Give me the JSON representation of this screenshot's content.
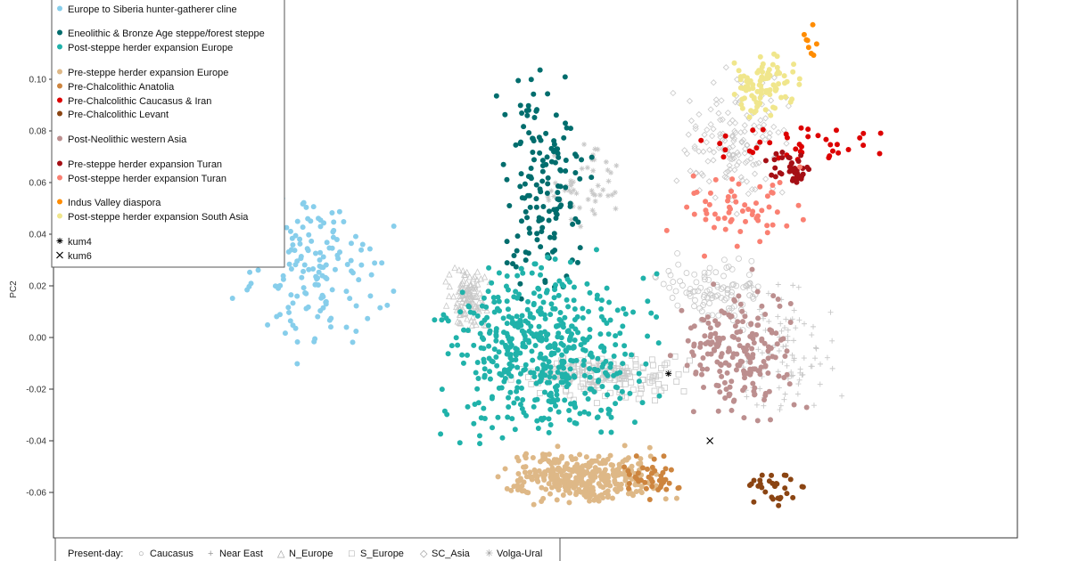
{
  "chart_data": {
    "type": "scatter",
    "title": "",
    "xlabel": "",
    "ylabel": "PC2",
    "ylim": [
      -0.072,
      0.128
    ],
    "yticks": [
      0.1,
      0.08,
      0.06,
      0.04,
      0.02,
      0.0,
      -0.02,
      -0.04,
      -0.06
    ],
    "ytick_labels": [
      "0.10",
      "0.08",
      "0.06",
      "0.04",
      "0.02",
      "0.00",
      "-0.02",
      "-0.04",
      "-0.06"
    ],
    "xlim": [
      0,
      100
    ],
    "grid": false,
    "legend_placement": "top-left",
    "legend": [
      {
        "label": "Europe to Siberia hunter-gatherer cline",
        "color": "#87ceeb",
        "marker": "dot"
      },
      {
        "label": "Eneolithic & Bronze Age steppe/forest steppe",
        "color": "#006d6d",
        "marker": "dot"
      },
      {
        "label": "Post-steppe herder expansion Europe",
        "color": "#20b2aa",
        "marker": "dot"
      },
      {
        "label": "Pre-steppe herder expansion Europe",
        "color": "#deb887",
        "marker": "dot"
      },
      {
        "label": "Pre-Chalcolithic Anatolia",
        "color": "#cd853f",
        "marker": "dot"
      },
      {
        "label": "Pre-Chalcolithic Caucasus & Iran",
        "color": "#dd0000",
        "marker": "dot"
      },
      {
        "label": "Pre-Chalcolithic Levant",
        "color": "#8b4513",
        "marker": "dot"
      },
      {
        "label": "Post-Neolithic western Asia",
        "color": "#bc8f8f",
        "marker": "dot"
      },
      {
        "label": "Pre-steppe herder expansion Turan",
        "color": "#a50f15",
        "marker": "dot"
      },
      {
        "label": "Post-steppe herder expansion Turan",
        "color": "#fa8072",
        "marker": "dot"
      },
      {
        "label": "Indus Valley diaspora",
        "color": "#ff8c00",
        "marker": "dot"
      },
      {
        "label": "Post-steppe herder expansion South Asia",
        "color": "#f0e68c",
        "marker": "dot"
      },
      {
        "label": "kum4",
        "color": "#000000",
        "marker": "asterisk"
      },
      {
        "label": "kum6",
        "color": "#000000",
        "marker": "cross"
      }
    ],
    "present_day_legend": {
      "title": "Present-day:",
      "items": [
        {
          "label": "Caucasus",
          "symbol": "○"
        },
        {
          "label": "Near East",
          "symbol": "+"
        },
        {
          "label": "N_Europe",
          "symbol": "△"
        },
        {
          "label": "S_Europe",
          "symbol": "□"
        },
        {
          "label": "SC_Asia",
          "symbol": "◇"
        },
        {
          "label": "Volga-Ural",
          "symbol": "✳"
        }
      ]
    },
    "clusters": [
      {
        "series": "Present-day N_Europe",
        "marker": "triangle",
        "color": "#c8c8c8",
        "n": 120,
        "x": [
          40,
          46
        ],
        "y": [
          0.0,
          0.03
        ]
      },
      {
        "series": "Present-day S_Europe",
        "marker": "square",
        "color": "#c8c8c8",
        "n": 180,
        "x": [
          46,
          68
        ],
        "y": [
          -0.026,
          -0.003
        ]
      },
      {
        "series": "Present-day Caucasus",
        "marker": "circle",
        "color": "#c8c8c8",
        "n": 100,
        "x": [
          61,
          76
        ],
        "y": [
          0.0,
          0.035
        ]
      },
      {
        "series": "Present-day Near East",
        "marker": "plus",
        "color": "#c8c8c8",
        "n": 90,
        "x": [
          68,
          83
        ],
        "y": [
          -0.045,
          0.03
        ]
      },
      {
        "series": "Present-day SC_Asia",
        "marker": "diamond",
        "color": "#c8c8c8",
        "n": 150,
        "x": [
          63,
          79
        ],
        "y": [
          0.04,
          0.11
        ]
      },
      {
        "series": "Present-day Volga-Ural",
        "marker": "asterisk",
        "color": "#c8c8c8",
        "n": 50,
        "x": [
          50,
          60
        ],
        "y": [
          0.04,
          0.08
        ]
      },
      {
        "series": "Europe to Siberia hunter-gatherer cline",
        "color": "#87ceeb",
        "n": 150,
        "x": [
          17,
          37
        ],
        "y": [
          -0.017,
          0.07
        ]
      },
      {
        "series": "Eneolithic & Bronze Age steppe/forest steppe",
        "color": "#006d6d",
        "n": 150,
        "x": [
          45,
          57
        ],
        "y": [
          0.0,
          0.115
        ]
      },
      {
        "series": "Post-steppe herder expansion Europe",
        "color": "#20b2aa",
        "n": 500,
        "x": [
          37,
          65
        ],
        "y": [
          -0.05,
          0.04
        ]
      },
      {
        "series": "Pre-steppe herder expansion Europe",
        "color": "#deb887",
        "n": 350,
        "x": [
          44,
          66
        ],
        "y": [
          -0.068,
          -0.04
        ]
      },
      {
        "series": "Pre-Chalcolithic Anatolia",
        "color": "#cd853f",
        "n": 40,
        "x": [
          58,
          66
        ],
        "y": [
          -0.066,
          -0.04
        ]
      },
      {
        "series": "Post-Neolithic western Asia",
        "color": "#bc8f8f",
        "n": 200,
        "x": [
          63,
          79
        ],
        "y": [
          -0.04,
          0.03
        ]
      },
      {
        "series": "Pre-Chalcolithic Caucasus & Iran",
        "color": "#dd0000",
        "n": 40,
        "x": [
          63,
          89
        ],
        "y": [
          0.065,
          0.085
        ]
      },
      {
        "series": "Pre-steppe herder expansion Turan",
        "color": "#a50f15",
        "n": 40,
        "x": [
          73,
          80
        ],
        "y": [
          0.055,
          0.075
        ]
      },
      {
        "series": "Post-steppe herder expansion Turan",
        "color": "#fa8072",
        "n": 60,
        "x": [
          62,
          80
        ],
        "y": [
          0.03,
          0.07
        ]
      },
      {
        "series": "Pre-Chalcolithic Levant",
        "color": "#8b4513",
        "n": 30,
        "x": [
          71,
          79
        ],
        "y": [
          -0.068,
          -0.05
        ]
      },
      {
        "series": "Post-steppe herder expansion South Asia",
        "color": "#f0e68c",
        "n": 90,
        "x": [
          69,
          78
        ],
        "y": [
          0.08,
          0.115
        ]
      },
      {
        "series": "Indus Valley diaspora",
        "color": "#ff8c00",
        "n": 8,
        "x": [
          76,
          81
        ],
        "y": [
          0.1,
          0.127
        ]
      }
    ],
    "highlights": [
      {
        "label": "kum4",
        "x": 63.8,
        "y": -0.014,
        "marker": "asterisk"
      },
      {
        "label": "kum6",
        "x": 68.1,
        "y": -0.04,
        "marker": "cross"
      }
    ]
  }
}
